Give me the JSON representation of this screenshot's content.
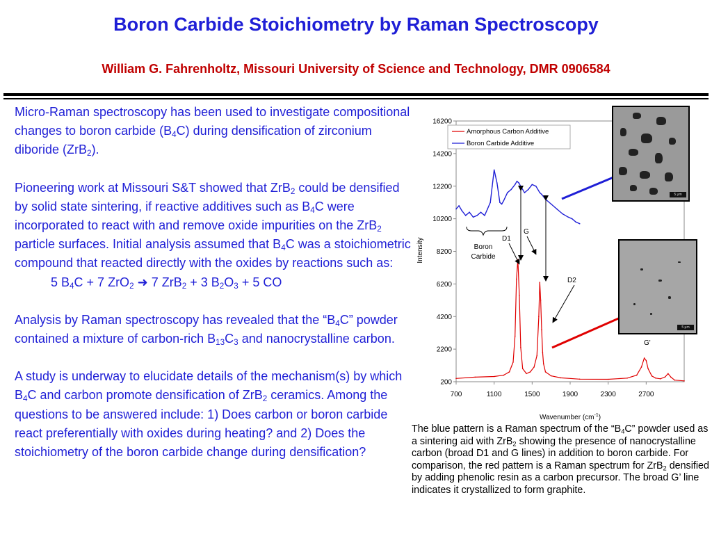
{
  "slide": {
    "title": "Boron Carbide Stoichiometry by Raman Spectroscopy",
    "subtitle": "William G. Fahrenholtz, Missouri University of Science and Technology, DMR 0906584"
  },
  "body_text": {
    "para1_a": "Micro-Raman spectroscopy has been used to investigate compositional changes to boron carbide (B",
    "para1_b": "C) during densification of zirconium diboride (ZrB",
    "para1_c": ").",
    "para2_a": "Pioneering work at Missouri S&T showed that ZrB",
    "para2_b": " could be densified by solid state sintering, if reactive additives such as B",
    "para2_c": "C were incorporated to react with and remove oxide impurities on the ZrB",
    "para2_d": " particle surfaces.  Initial analysis assumed that B",
    "para2_e": "C was a stoichiometric compound that reacted directly with the oxides by reactions such as:",
    "reaction_a": "5 B",
    "reaction_b": "C + 7 ZrO",
    "reaction_c": "7 ZrB",
    "reaction_d": " + 3 B",
    "reaction_e": "O",
    "reaction_f": " + 5 CO",
    "para3_a": "Analysis by Raman spectroscopy has revealed that the “B",
    "para3_b": "C” powder contained a mixture of carbon-rich B",
    "para3_c": "C",
    "para3_d": " and nanocrystalline carbon.",
    "para4_a": "A study is underway to elucidate details of the mechanism(s) by which B",
    "para4_b": "C and carbon promote densification of ZrB",
    "para4_c": " ceramics.  Among the questions to be answered include:  1) Does carbon or boron carbide react preferentially with oxides during heating? and 2) Does the stoichiometry of the boron carbide change during densification?",
    "sub_2": "2",
    "sub_3": "3",
    "sub_4": "4",
    "sub_13": "13"
  },
  "caption": {
    "a": "The blue pattern is a Raman spectrum of the “B",
    "b": "C” powder used as a sintering aid with ZrB",
    "c": " showing the presence of nanocrystalline carbon (broad D1 and G lines) in addition to boron carbide.  For comparison, the red pattern is a Raman spectrum for ZrB",
    "d": " densified by adding phenolic resin as a carbon precursor.  The broad G’ line indicates it crystallized to form graphite."
  },
  "chart_data": {
    "type": "line",
    "title": "",
    "xlabel_a": "Wavenumber (cm",
    "xlabel_sup": "-1",
    "xlabel_b": ")",
    "ylabel": "Intensity",
    "xlim": [
      700,
      3100
    ],
    "ylim": [
      200,
      16200
    ],
    "xticks": [
      "700",
      "1100",
      "1500",
      "1900",
      "2300",
      "2700"
    ],
    "yticks": [
      "200",
      "2200",
      "4200",
      "6200",
      "8200",
      "10200",
      "12200",
      "14200",
      "16200"
    ],
    "legend_position": "top-left",
    "series": [
      {
        "name": "Amorphous Carbon Additive",
        "color": "#e00000",
        "x": [
          700,
          900,
          1100,
          1200,
          1260,
          1300,
          1320,
          1335,
          1350,
          1365,
          1380,
          1400,
          1440,
          1480,
          1520,
          1550,
          1570,
          1580,
          1590,
          1600,
          1610,
          1620,
          1640,
          1700,
          1800,
          2000,
          2300,
          2500,
          2600,
          2650,
          2680,
          2700,
          2720,
          2760,
          2800,
          2850,
          2900,
          2930,
          2960,
          3000,
          3100
        ],
        "y": [
          400,
          480,
          520,
          600,
          800,
          1400,
          3000,
          6500,
          7700,
          5500,
          2300,
          1000,
          700,
          800,
          1100,
          1800,
          4200,
          6300,
          5200,
          3400,
          2000,
          1300,
          800,
          560,
          440,
          360,
          350,
          420,
          600,
          1100,
          1650,
          1500,
          1000,
          550,
          420,
          380,
          500,
          700,
          480,
          300,
          250
        ]
      },
      {
        "name": "Boron Carbide Additive",
        "color": "#1f1fd6",
        "x": [
          700,
          730,
          760,
          800,
          840,
          880,
          920,
          960,
          1000,
          1030,
          1060,
          1080,
          1100,
          1130,
          1160,
          1180,
          1200,
          1240,
          1280,
          1320,
          1340,
          1360,
          1380,
          1420,
          1460,
          1500,
          1540,
          1580,
          1600,
          1640,
          1700,
          1760,
          1820,
          1880,
          1920,
          1960,
          2000
        ],
        "y": [
          10800,
          11000,
          10700,
          10400,
          10600,
          10300,
          10400,
          10600,
          10400,
          10800,
          11200,
          12200,
          13200,
          12400,
          11200,
          11100,
          11300,
          11800,
          12000,
          12300,
          12500,
          12400,
          12200,
          11800,
          12000,
          12300,
          12200,
          11800,
          11700,
          11400,
          11100,
          10800,
          10500,
          10300,
          10200,
          10000,
          9900
        ]
      }
    ],
    "annotations": [
      "D1",
      "G",
      "D2",
      "G'",
      "Boron Carbide"
    ]
  },
  "figure": {
    "sem_scale_1": "5 μm",
    "sem_scale_2": "5 μm",
    "colors": {
      "title": "#1f1fd6",
      "subtitle": "#c00000",
      "arrow_blue": "#1f1fd6",
      "arrow_red": "#e00000"
    }
  }
}
